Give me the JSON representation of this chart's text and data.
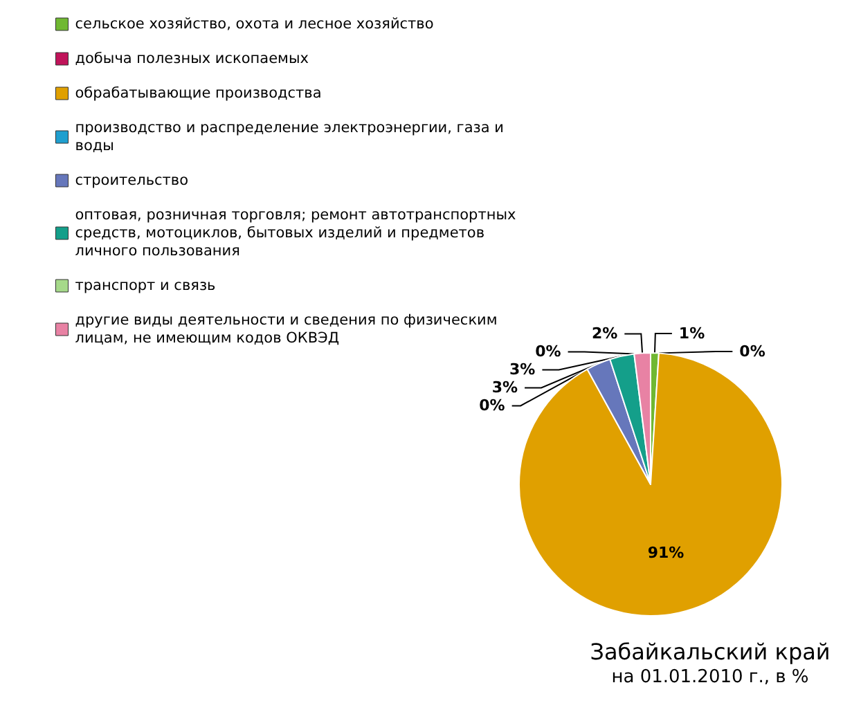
{
  "chart_data": {
    "type": "pie",
    "title": "Забайкальский край",
    "subtitle": "на 01.01.2010 г., в %",
    "categories": [
      "сельское хозяйство, охота и лесное хозяйство",
      "добыча полезных ископаемых",
      "обрабатывающие производства",
      "производство и распределение электроэнергии, газа и воды",
      "строительство",
      "оптовая, розничная торговля; ремонт автотранспортных средств, мотоциклов, бытовых изделий и предметов личного пользования",
      "транспорт и связь",
      "другие виды деятельности и сведения по физическим лицам, не имеющим кодов ОКВЭД"
    ],
    "values": [
      1,
      0,
      91,
      0,
      3,
      3,
      0,
      2
    ],
    "colors": [
      "#70b832",
      "#c0145a",
      "#e0a000",
      "#1f9fcf",
      "#6677bb",
      "#149f8a",
      "#a6d98a",
      "#e882a4"
    ],
    "value_labels": [
      "1%",
      "0%",
      "91%",
      "0%",
      "3%",
      "3%",
      "0%",
      "2%"
    ],
    "legend": "top left"
  }
}
